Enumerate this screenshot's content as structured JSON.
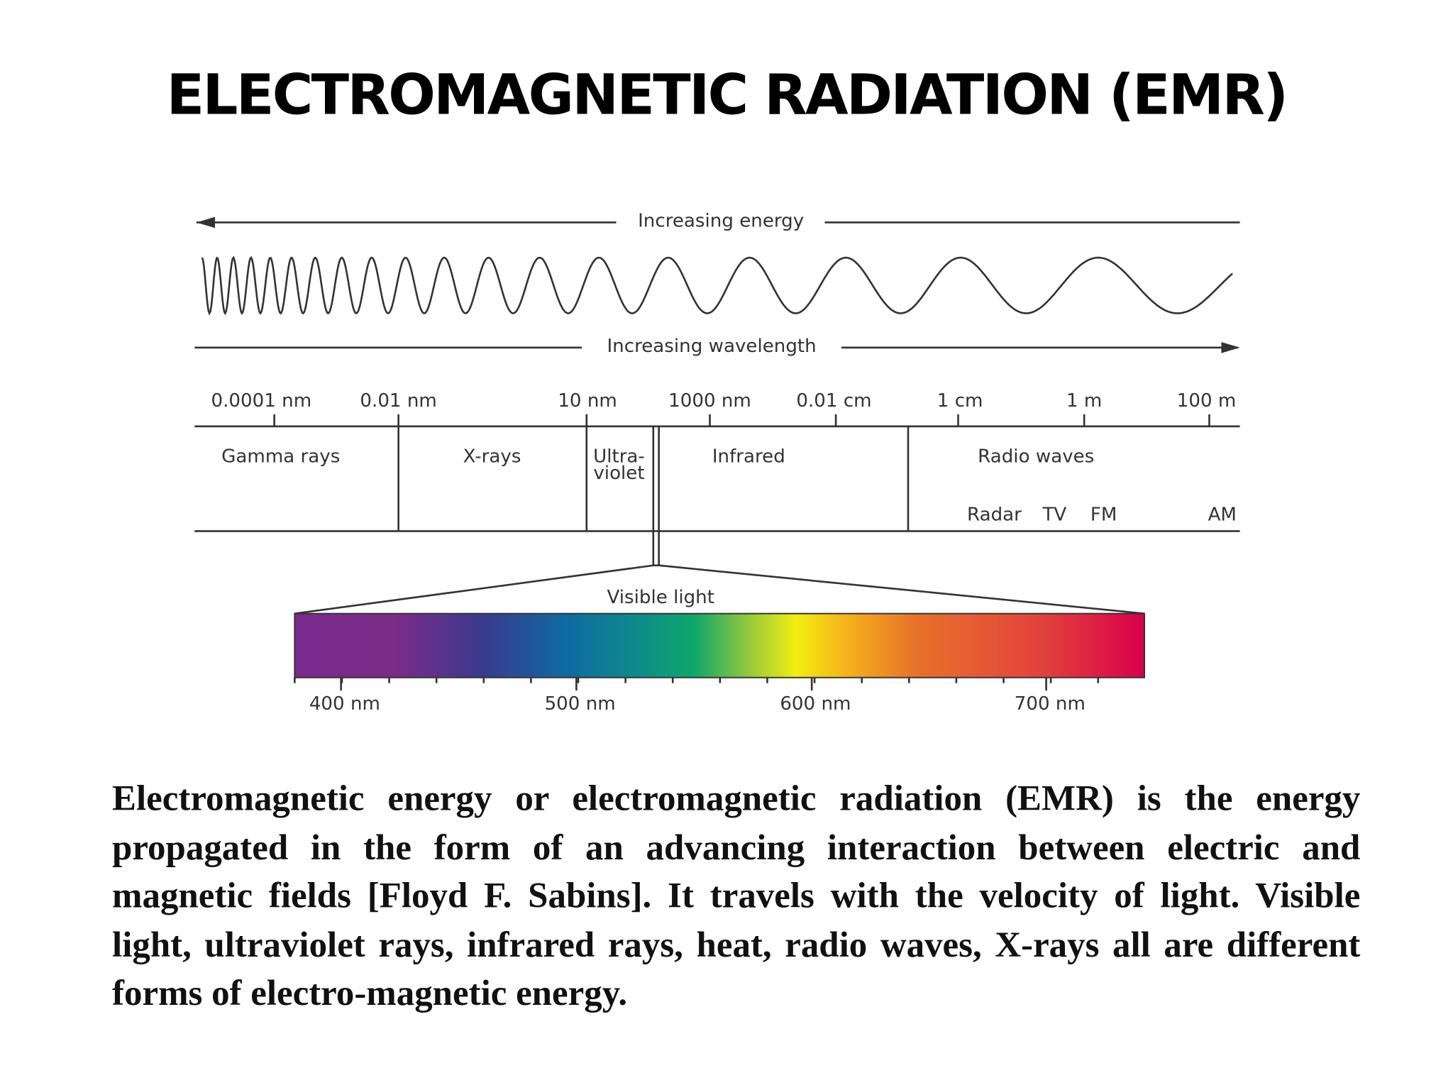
{
  "title": "ELECTROMAGNETIC RADIATION (EMR)",
  "diagram": {
    "energy_label": "Increasing energy",
    "wavelength_label": "Increasing wavelength",
    "scale_labels": [
      "0.0001 nm",
      "0.01 nm",
      "10 nm",
      "1000 nm",
      "0.01 cm",
      "1 cm",
      "1 m",
      "100 m"
    ],
    "bands": [
      [
        "Gamma rays"
      ],
      [
        "X-rays"
      ],
      [
        "Ultra-",
        "violet"
      ],
      [
        "Infrared"
      ],
      [
        "Radio waves"
      ]
    ],
    "radio_subbands": [
      "Radar",
      "TV",
      "FM",
      "AM"
    ],
    "visible_label": "Visible light",
    "visible_scale_labels": [
      "400 nm",
      "500 nm",
      "600 nm",
      "700 nm"
    ]
  },
  "paragraph": "Electromagnetic energy or electromagnetic radiation (EMR) is the energy propagated in the form of an advancing interaction between electric and magnetic fields [Floyd F. Sabins]. It travels with the velocity of light. Visible light, ultraviolet rays, infrared rays, heat, radio waves, X-rays all are different forms of electro-magnetic energy."
}
